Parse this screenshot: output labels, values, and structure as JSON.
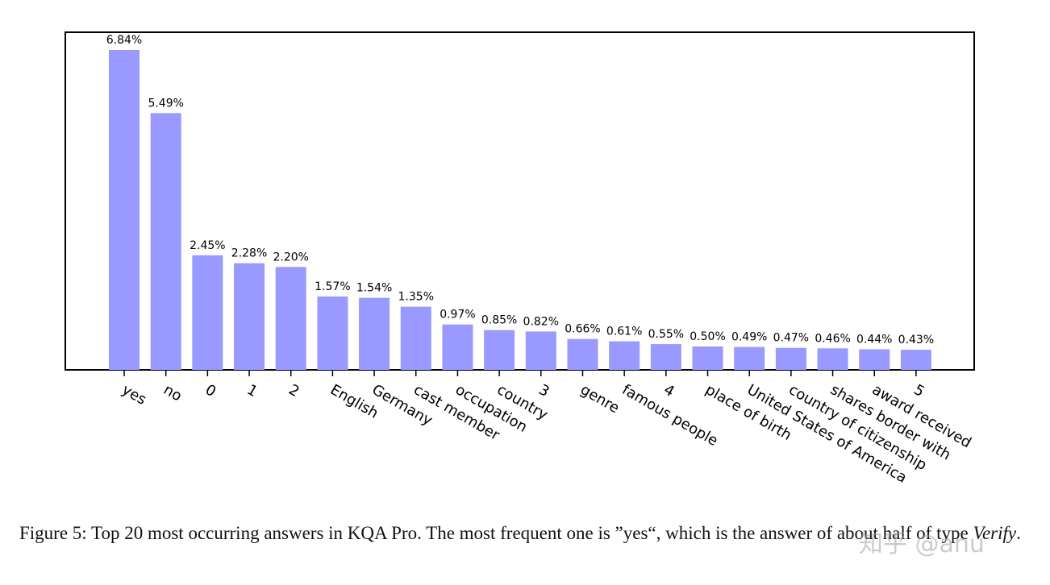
{
  "chart_data": {
    "type": "bar",
    "categories": [
      "yes",
      "no",
      "0",
      "1",
      "2",
      "English",
      "Germany",
      "cast member",
      "occupation",
      "country",
      "3",
      "genre",
      "famous people",
      "4",
      "place of birth",
      "United States of America",
      "country of citizenship",
      "shares border with",
      "award received",
      "5"
    ],
    "values": [
      6.84,
      5.49,
      2.45,
      2.28,
      2.2,
      1.57,
      1.54,
      1.35,
      0.97,
      0.85,
      0.82,
      0.66,
      0.61,
      0.55,
      0.5,
      0.49,
      0.47,
      0.46,
      0.44,
      0.43
    ],
    "value_labels": [
      "6.84%",
      "5.49%",
      "2.45%",
      "2.28%",
      "2.20%",
      "1.57%",
      "1.54%",
      "1.35%",
      "0.97%",
      "0.85%",
      "0.82%",
      "0.66%",
      "0.61%",
      "0.55%",
      "0.50%",
      "0.49%",
      "0.47%",
      "0.46%",
      "0.44%",
      "0.43%"
    ],
    "color": "#9999ff"
  },
  "caption": {
    "text": "Figure 5: Top 20 most occurring answers in KQA Pro. The most frequent one is ”yes“, which is the answer of about half of type ",
    "emphasis": "Verify",
    "end": "."
  },
  "watermark": "知乎 @anu"
}
